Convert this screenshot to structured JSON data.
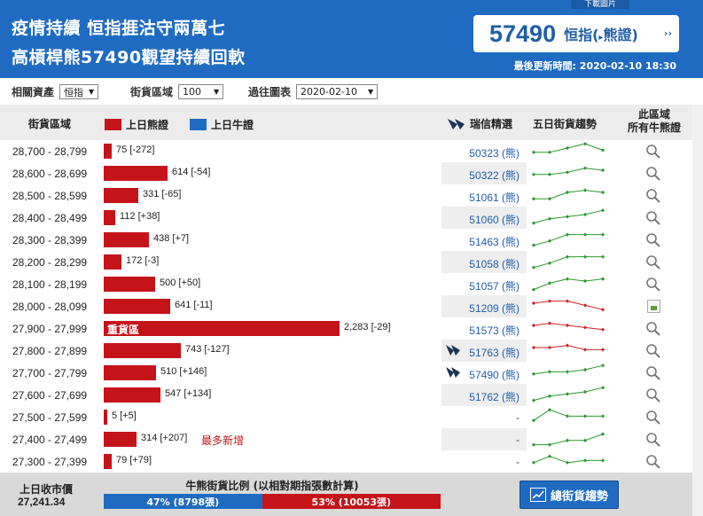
{
  "header": {
    "download_tab": "下載圖片",
    "title_line1": "疫情持續 恒指捱沽守兩萬七",
    "title_line2": "高槓桿熊57490觀望持續回軟",
    "price": "57490",
    "price_label": "恒指",
    "price_type": "熊證",
    "price_more": "››",
    "updated": "最後更新時間: 2020-02-10 18:30"
  },
  "controls": {
    "asset_label": "相關資產",
    "asset_value": "恒指",
    "zone_label": "街貨區域",
    "zone_value": "100",
    "chart_label": "過往圖表",
    "chart_value": "2020-02-10"
  },
  "columns": {
    "range": "街貨區域",
    "bear_legend": "上日熊證",
    "bull_legend": "上日牛證",
    "pick": "瑞信精選",
    "five_day": "五日街貨趨勢",
    "zone_line1": "此區域",
    "zone_line2": "所有牛熊證"
  },
  "colors": {
    "bear": "#c4141a",
    "bull": "#1f6bc2",
    "trend_up": "#2a9a2a",
    "trend_down": "#d42020"
  },
  "rows": [
    {
      "range": "28,700 - 28,799",
      "value": 75,
      "label": "75 [-272]",
      "code": "50323 (熊)",
      "pick": false,
      "trend": [
        3,
        3,
        5,
        7,
        4
      ],
      "trend_color": "green",
      "zone_icon": "search-icon"
    },
    {
      "range": "28,600 - 28,699",
      "value": 614,
      "label": "614 [-54]",
      "code": "50322 (熊)",
      "pick": false,
      "trend": [
        3,
        3,
        4,
        6,
        5
      ],
      "trend_color": "green",
      "zone_icon": "search-icon"
    },
    {
      "range": "28,500 - 28,599",
      "value": 331,
      "label": "331 [-65]",
      "code": "51061 (熊)",
      "pick": false,
      "trend": [
        2,
        2,
        5,
        6,
        5
      ],
      "trend_color": "green",
      "zone_icon": "search-icon"
    },
    {
      "range": "28,400 - 28,499",
      "value": 112,
      "label": "112 [+38]",
      "code": "51060 (熊)",
      "pick": false,
      "trend": [
        1,
        3,
        4,
        5,
        7
      ],
      "trend_color": "green",
      "zone_icon": "search-icon"
    },
    {
      "range": "28,300 - 28,399",
      "value": 438,
      "label": "438 [+7]",
      "code": "51463 (熊)",
      "pick": false,
      "trend": [
        1,
        3,
        6,
        6,
        6
      ],
      "trend_color": "green",
      "zone_icon": "search-icon"
    },
    {
      "range": "28,200 - 28,299",
      "value": 172,
      "label": "172 [-3]",
      "code": "51058 (熊)",
      "pick": false,
      "trend": [
        1,
        3,
        6,
        6,
        6
      ],
      "trend_color": "green",
      "zone_icon": "search-icon"
    },
    {
      "range": "28,100 - 28,199",
      "value": 500,
      "label": "500 [+50]",
      "code": "51057 (熊)",
      "pick": false,
      "trend": [
        1,
        4,
        6,
        5,
        6
      ],
      "trend_color": "green",
      "zone_icon": "search-icon"
    },
    {
      "range": "28,000 - 28,099",
      "value": 641,
      "label": "641 [-11]",
      "code": "51209 (熊)",
      "pick": false,
      "trend": [
        5,
        6,
        6,
        4,
        2
      ],
      "trend_color": "red",
      "zone_icon": "broken-image"
    },
    {
      "range": "27,900 - 27,999",
      "value": 2283,
      "label": "2,283 [-29]",
      "inside": "重貨區",
      "code": "51573 (熊)",
      "pick": false,
      "trend": [
        5,
        6,
        5,
        4,
        3
      ],
      "trend_color": "red",
      "zone_icon": "search-icon"
    },
    {
      "range": "27,800 - 27,899",
      "value": 743,
      "label": "743 [-127]",
      "code": "51763 (熊)",
      "pick": true,
      "trend": [
        5,
        5,
        6,
        4,
        4
      ],
      "trend_color": "red",
      "zone_icon": "search-icon"
    },
    {
      "range": "27,700 - 27,799",
      "value": 510,
      "label": "510 [+146]",
      "code": "57490 (熊)",
      "pick": true,
      "trend": [
        3,
        4,
        4,
        5,
        7
      ],
      "trend_color": "green",
      "zone_icon": "search-icon"
    },
    {
      "range": "27,600 - 27,699",
      "value": 547,
      "label": "547 [+134]",
      "code": "51762 (熊)",
      "pick": false,
      "trend": [
        1,
        3,
        4,
        5,
        7
      ],
      "trend_color": "green",
      "zone_icon": "search-icon"
    },
    {
      "range": "27,500 - 27,599",
      "value": 5,
      "label": "5 [+5]",
      "code": "-",
      "pick": false,
      "trend": [
        2,
        7,
        4,
        4,
        4
      ],
      "trend_color": "green",
      "zone_icon": "search-icon"
    },
    {
      "range": "27,400 - 27,499",
      "value": 314,
      "label": "314 [+207]",
      "note": "最多新增",
      "code": "-",
      "pick": false,
      "trend": [
        1,
        1,
        3,
        3,
        6
      ],
      "trend_color": "green",
      "zone_icon": "search-icon"
    },
    {
      "range": "27,300 - 27,399",
      "value": 79,
      "label": "79 [+79]",
      "code": "-",
      "pick": false,
      "trend": [
        3,
        6,
        3,
        4,
        4
      ],
      "trend_color": "green",
      "zone_icon": "search-icon"
    }
  ],
  "footer": {
    "close_label": "上日收市價",
    "close_value": "27,241.34",
    "ratio_title": "牛熊街貨比例 (以相對期指張數計算)",
    "bull_pct": 47,
    "bull_text": "47% (8798張)",
    "bear_text": "53% (10053張)",
    "trend_button": "總街貨趨勢"
  }
}
